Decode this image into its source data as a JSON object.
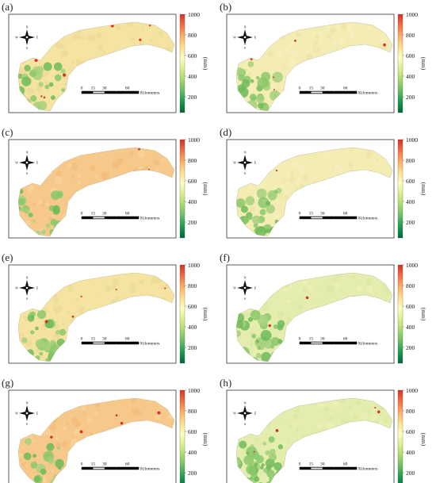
{
  "panels": [
    {
      "label": "(a)",
      "tone": "mixed"
    },
    {
      "label": "(b)",
      "tone": "pale"
    },
    {
      "label": "(c)",
      "tone": "warm"
    },
    {
      "label": "(d)",
      "tone": "pale"
    },
    {
      "label": "(e)",
      "tone": "mixed"
    },
    {
      "label": "(f)",
      "tone": "cool"
    },
    {
      "label": "(g)",
      "tone": "warm"
    },
    {
      "label": "(h)",
      "tone": "cool"
    }
  ],
  "legend": {
    "unit": "(mm)",
    "ticks": [
      "1000",
      "800",
      "600",
      "400",
      "200"
    ],
    "colors": [
      "#d73027",
      "#f46d43",
      "#fdae61",
      "#fee08b",
      "#ffffbf",
      "#d9ef8b",
      "#a6d96a",
      "#66bd63",
      "#1a9850",
      "#006837"
    ]
  },
  "scalebar": {
    "ticks": [
      "0",
      "15",
      "30",
      "60"
    ],
    "unit_label": "Kilometers"
  },
  "compass": {
    "n": "N",
    "s": "S",
    "e": "E",
    "w": "W"
  },
  "region_colors": {
    "warm": [
      "#f6c98a",
      "#f3bd7c",
      "#f7d39a"
    ],
    "mixed": [
      "#f4e4a0",
      "#eadc96",
      "#f1d89a"
    ],
    "pale": [
      "#f3ecb3",
      "#ece6a6",
      "#f6efbf"
    ],
    "cool": [
      "#e4ecae",
      "#dbe8a2",
      "#eaf0b6"
    ],
    "green": [
      "#8ac86a",
      "#6fbb5a",
      "#a6d17d"
    ]
  }
}
